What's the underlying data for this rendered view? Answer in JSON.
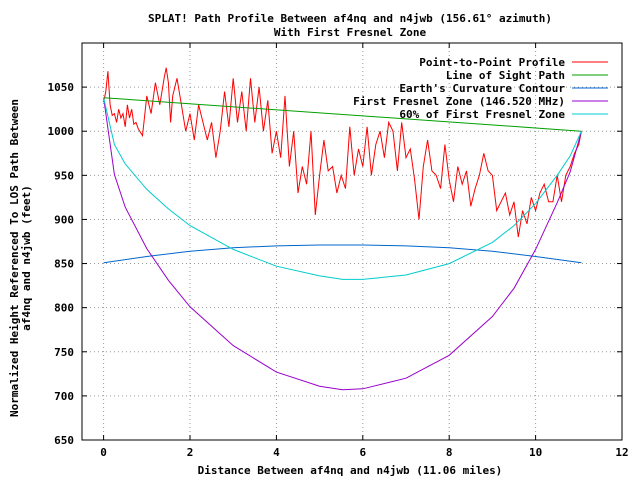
{
  "chart_data": {
    "type": "line",
    "title": "SPLAT! Path Profile Between af4nq and n4jwb (156.61° azimuth)",
    "subtitle": "With First Fresnel Zone",
    "xlabel": "Distance Between af4nq and n4jwb (11.06 miles)",
    "ylabel_line1": "Normalized Height Referenced To LOS Path Between",
    "ylabel_line2": "af4nq and n4jwb (feet)",
    "xlim": [
      -0.5,
      12
    ],
    "ylim": [
      650,
      1100
    ],
    "xticks": [
      0,
      2,
      4,
      6,
      8,
      10,
      12
    ],
    "yticks": [
      650,
      700,
      750,
      800,
      850,
      900,
      950,
      1000,
      1050
    ],
    "grid": true,
    "legend_position": "top-right",
    "series": [
      {
        "name": "Point-to-Point Profile",
        "color": "#ff0000",
        "x": [
          0,
          0.05,
          0.1,
          0.15,
          0.2,
          0.25,
          0.3,
          0.35,
          0.4,
          0.45,
          0.5,
          0.55,
          0.6,
          0.65,
          0.7,
          0.75,
          0.8,
          0.9,
          1.0,
          1.1,
          1.2,
          1.3,
          1.4,
          1.45,
          1.5,
          1.55,
          1.6,
          1.7,
          1.8,
          1.9,
          2.0,
          2.1,
          2.2,
          2.3,
          2.4,
          2.5,
          2.6,
          2.7,
          2.8,
          2.9,
          3.0,
          3.1,
          3.2,
          3.3,
          3.4,
          3.5,
          3.6,
          3.7,
          3.8,
          3.9,
          4.0,
          4.1,
          4.2,
          4.3,
          4.4,
          4.5,
          4.6,
          4.7,
          4.8,
          4.9,
          5.0,
          5.1,
          5.2,
          5.3,
          5.4,
          5.5,
          5.6,
          5.7,
          5.8,
          5.9,
          6.0,
          6.1,
          6.2,
          6.3,
          6.4,
          6.5,
          6.6,
          6.7,
          6.8,
          6.9,
          7.0,
          7.1,
          7.2,
          7.3,
          7.4,
          7.5,
          7.6,
          7.7,
          7.8,
          7.9,
          8.0,
          8.1,
          8.2,
          8.3,
          8.4,
          8.5,
          8.6,
          8.7,
          8.8,
          8.9,
          9.0,
          9.1,
          9.2,
          9.3,
          9.4,
          9.5,
          9.6,
          9.7,
          9.8,
          9.9,
          10.0,
          10.1,
          10.2,
          10.3,
          10.4,
          10.5,
          10.6,
          10.7,
          10.8,
          10.9,
          11.0,
          11.06
        ],
        "values": [
          1033,
          1045,
          1068,
          1030,
          1018,
          1020,
          1010,
          1025,
          1015,
          1020,
          1005,
          1030,
          1015,
          1025,
          1008,
          1010,
          1003,
          995,
          1040,
          1020,
          1055,
          1030,
          1060,
          1072,
          1055,
          1010,
          1040,
          1060,
          1030,
          1000,
          1020,
          990,
          1030,
          1010,
          990,
          1010,
          970,
          1000,
          1045,
          1005,
          1060,
          1010,
          1045,
          1000,
          1060,
          1010,
          1050,
          1000,
          1035,
          975,
          1000,
          970,
          1040,
          960,
          1000,
          930,
          960,
          940,
          1000,
          905,
          950,
          990,
          955,
          960,
          930,
          950,
          935,
          1005,
          950,
          980,
          960,
          1005,
          950,
          985,
          1000,
          970,
          1010,
          1000,
          955,
          1010,
          970,
          980,
          945,
          900,
          960,
          990,
          955,
          950,
          935,
          985,
          945,
          920,
          960,
          940,
          955,
          915,
          935,
          950,
          975,
          955,
          950,
          910,
          920,
          930,
          905,
          920,
          880,
          910,
          895,
          925,
          910,
          930,
          940,
          920,
          920,
          950,
          920,
          950,
          960,
          975,
          985,
          1000
        ]
      },
      {
        "name": "Line of Sight Path",
        "color": "#00a000",
        "x": [
          0,
          11.06
        ],
        "values": [
          1038,
          1000
        ]
      },
      {
        "name": "Earth's Curvature Contour",
        "color": "#0066cc",
        "x": [
          0,
          1,
          2,
          3,
          4,
          5,
          5.53,
          6,
          7,
          8,
          9,
          10,
          11.06
        ],
        "values": [
          851,
          858,
          864,
          868,
          870,
          871,
          871,
          871,
          870,
          868,
          864,
          858,
          851
        ]
      },
      {
        "name": "First Fresnel Zone (146.520 MHz)",
        "color": "#9900cc",
        "x": [
          0,
          0.25,
          0.5,
          1,
          1.5,
          2,
          3,
          4,
          5,
          5.53,
          6,
          7,
          8,
          9,
          9.5,
          10,
          10.5,
          10.8,
          11.06
        ],
        "values": [
          1038,
          951,
          914,
          867,
          831,
          801,
          757,
          727,
          711,
          707,
          708,
          720,
          746,
          790,
          822,
          866,
          919,
          954,
          1000
        ]
      },
      {
        "name": "60% of First Fresnel Zone",
        "color": "#00cccc",
        "x": [
          0,
          0.25,
          0.5,
          1,
          1.5,
          2,
          3,
          4,
          5,
          5.53,
          6,
          7,
          8,
          9,
          9.5,
          10,
          10.5,
          10.8,
          11.06
        ],
        "values": [
          1038,
          985,
          963,
          934,
          912,
          893,
          866,
          847,
          836,
          832,
          832,
          837,
          850,
          874,
          893,
          918,
          950,
          972,
          1000
        ]
      }
    ]
  }
}
